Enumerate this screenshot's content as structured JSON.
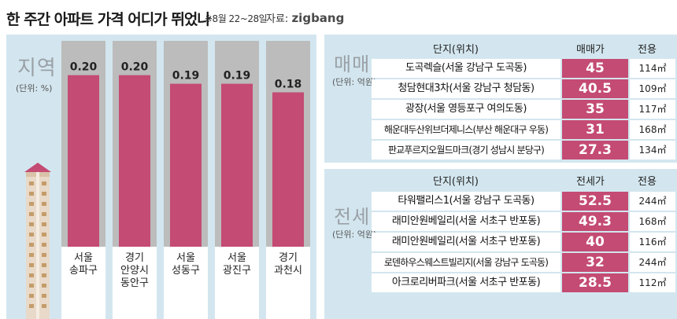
{
  "header": {
    "title": "한 주간 아파트 가격 어디가 뛰었나",
    "period": "※8월 22~28일",
    "source_label": "자료:",
    "source_name": "zigbang"
  },
  "left": {
    "label": "지역",
    "unit": "(단위: %)"
  },
  "chart_data": {
    "type": "bar",
    "categories": [
      "서울 송파구",
      "경기 안양시 동안구",
      "서울 성동구",
      "서울 광진구",
      "경기 과천시"
    ],
    "category_lines": [
      [
        "서울",
        "송파구"
      ],
      [
        "경기",
        "안양시",
        "동안구"
      ],
      [
        "서울",
        "성동구"
      ],
      [
        "서울",
        "광진구"
      ],
      [
        "경기",
        "과천시"
      ]
    ],
    "values": [
      0.2,
      0.2,
      0.19,
      0.19,
      0.18
    ],
    "value_labels": [
      "0.20",
      "0.20",
      "0.19",
      "0.19",
      "0.18"
    ],
    "title": "",
    "ylabel": "",
    "bar_color": "#c44b73",
    "column_bg": "#bcbcbc",
    "ylim": [
      0,
      0.24
    ]
  },
  "sale": {
    "title": "매매",
    "unit": "(단위: 억원)",
    "headers": [
      "단지(위치)",
      "매매가",
      "전용"
    ],
    "rows": [
      {
        "name": "도곡렉슬(서울 강남구 도곡동)",
        "price": "45",
        "area": "114㎡"
      },
      {
        "name": "청담현대3차(서울 강남구 청담동)",
        "price": "40.5",
        "area": "109㎡"
      },
      {
        "name": "광장(서울 영등포구 여의도동)",
        "price": "35",
        "area": "117㎡"
      },
      {
        "name": "해운대두산위브더제니스(부산 해운대구 우동)",
        "price": "31",
        "area": "168㎡"
      },
      {
        "name": "판교푸르지오월드마크(경기 성남시 분당구)",
        "price": "27.3",
        "area": "134㎡"
      }
    ]
  },
  "jeonse": {
    "title": "전세",
    "unit": "(단위: 억원)",
    "headers": [
      "단지(위치)",
      "전세가",
      "전용"
    ],
    "rows": [
      {
        "name": "타워팰리스1(서울 강남구 도곡동)",
        "price": "52.5",
        "area": "244㎡"
      },
      {
        "name": "래미안원베일리(서울 서초구 반포동)",
        "price": "49.3",
        "area": "168㎡"
      },
      {
        "name": "래미안원베일리(서울 서초구 반포동)",
        "price": "40",
        "area": "116㎡"
      },
      {
        "name": "로덴하우스웨스트빌리지(서울 강남구 도곡동)",
        "price": "32",
        "area": "244㎡"
      },
      {
        "name": "아크로리버파크(서울 서초구 반포동)",
        "price": "28.5",
        "area": "112㎡"
      }
    ]
  },
  "colors": {
    "accent": "#c44b73",
    "panel_bg": "#d3e6ef",
    "column_bg": "#bcbcbc"
  }
}
